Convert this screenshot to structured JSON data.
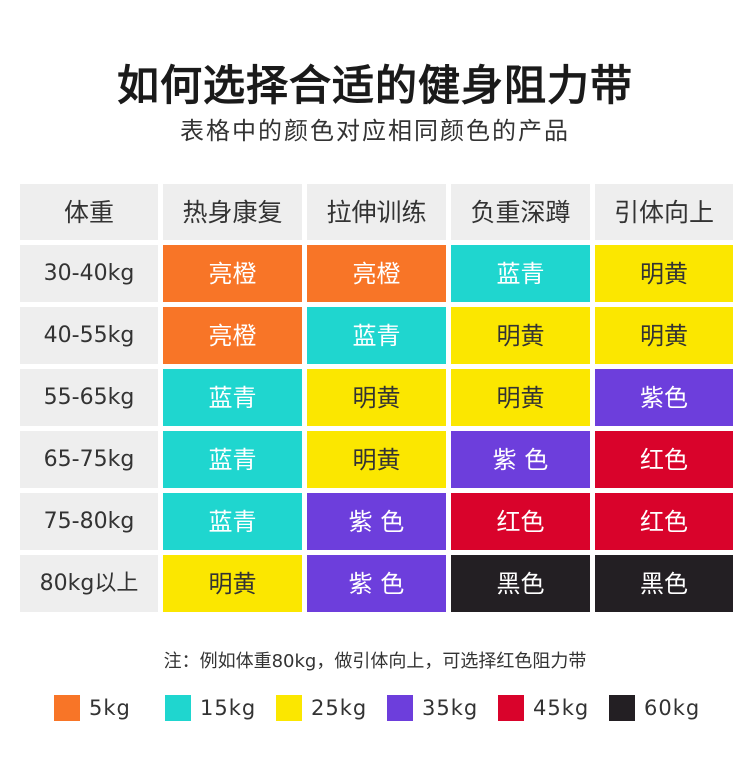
{
  "title": "如何选择合适的健身阻力带",
  "subtitle": "表格中的颜色对应相同颜色的产品",
  "table": {
    "headers": [
      "体重",
      "热身康复",
      "拉伸训练",
      "负重深蹲",
      "引体向上"
    ],
    "rows": [
      {
        "weight": "30-40kg",
        "cells": [
          {
            "label": "亮橙",
            "color": "orange"
          },
          {
            "label": "亮橙",
            "color": "orange"
          },
          {
            "label": "蓝青",
            "color": "cyan"
          },
          {
            "label": "明黄",
            "color": "yellow"
          }
        ]
      },
      {
        "weight": "40-55kg",
        "cells": [
          {
            "label": "亮橙",
            "color": "orange"
          },
          {
            "label": "蓝青",
            "color": "cyan"
          },
          {
            "label": "明黄",
            "color": "yellow"
          },
          {
            "label": "明黄",
            "color": "yellow"
          }
        ]
      },
      {
        "weight": "55-65kg",
        "cells": [
          {
            "label": "蓝青",
            "color": "cyan"
          },
          {
            "label": "明黄",
            "color": "yellow"
          },
          {
            "label": "明黄",
            "color": "yellow"
          },
          {
            "label": "紫色",
            "color": "purple"
          }
        ]
      },
      {
        "weight": "65-75kg",
        "cells": [
          {
            "label": "蓝青",
            "color": "cyan"
          },
          {
            "label": "明黄",
            "color": "yellow"
          },
          {
            "label": "紫 色",
            "color": "purple"
          },
          {
            "label": "红色",
            "color": "red"
          }
        ]
      },
      {
        "weight": "75-80kg",
        "cells": [
          {
            "label": "蓝青",
            "color": "cyan"
          },
          {
            "label": "紫 色",
            "color": "purple"
          },
          {
            "label": "红色",
            "color": "red"
          },
          {
            "label": "红色",
            "color": "red"
          }
        ]
      },
      {
        "weight": "80kg以上",
        "cells": [
          {
            "label": "明黄",
            "color": "yellow"
          },
          {
            "label": "紫 色",
            "color": "purple"
          },
          {
            "label": "黑色",
            "color": "black"
          },
          {
            "label": "黑色",
            "color": "black"
          }
        ]
      }
    ]
  },
  "note": "注：例如体重80kg，做引体向上，可选择红色阻力带",
  "legend": [
    {
      "label": "5kg",
      "color": "orange"
    },
    {
      "label": "15kg",
      "color": "cyan"
    },
    {
      "label": "25kg",
      "color": "yellow"
    },
    {
      "label": "35kg",
      "color": "purple"
    },
    {
      "label": "45kg",
      "color": "red"
    },
    {
      "label": "60kg",
      "color": "black"
    }
  ],
  "colors": {
    "orange": "#f87527",
    "cyan": "#1fd6cf",
    "yellow": "#fbe700",
    "purple": "#6d3edc",
    "red": "#d9032b",
    "black": "#231f23",
    "header_bg": "#eeeeee"
  }
}
